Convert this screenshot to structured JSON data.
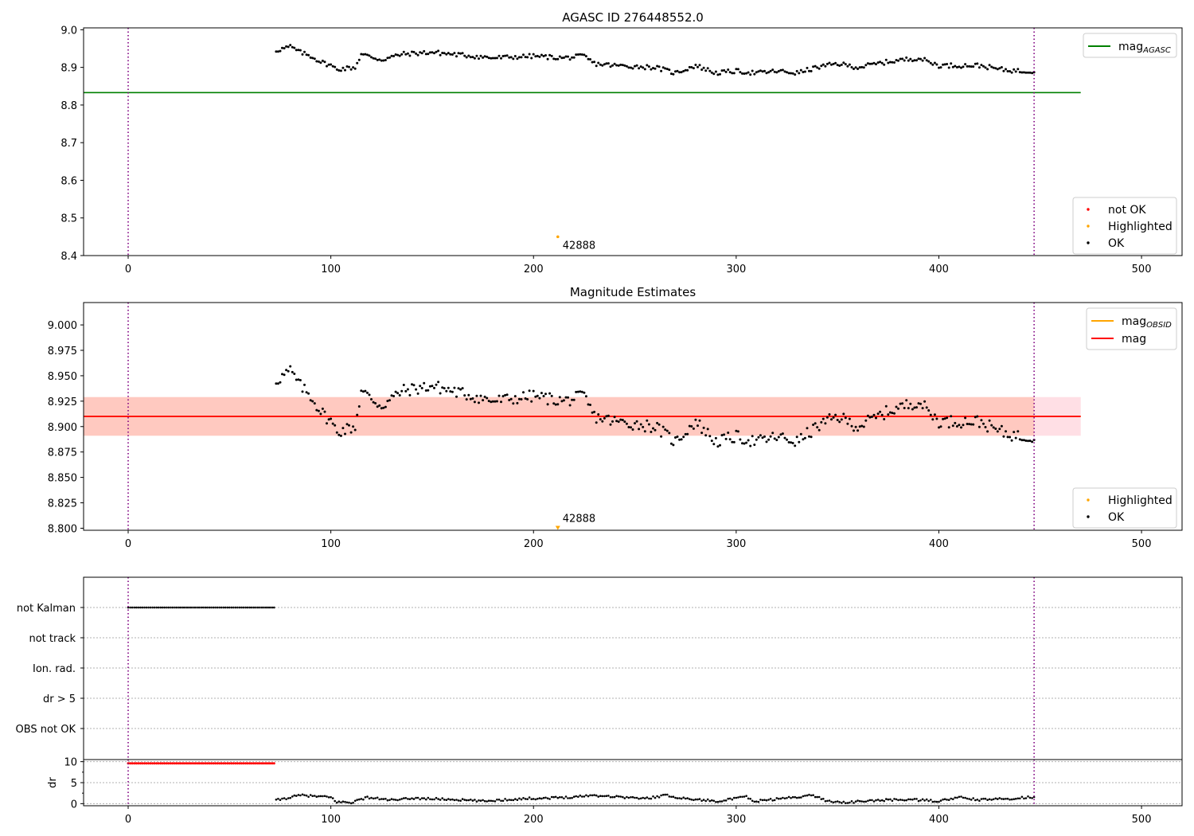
{
  "chart_data": [
    {
      "type": "scatter",
      "title": "AGASC ID 276448552.0",
      "xlim": [
        -22,
        520
      ],
      "ylim": [
        8.4,
        9.005
      ],
      "xticks": [
        0,
        100,
        200,
        300,
        400,
        500
      ],
      "yticks": [
        8.4,
        8.5,
        8.6,
        8.7,
        8.8,
        8.9,
        9.0
      ],
      "ytick_labels": [
        "8.4",
        "8.5",
        "8.6",
        "8.7",
        "8.8",
        "8.9",
        "9.0"
      ],
      "vlines": [
        0,
        447
      ],
      "hline": {
        "name": "mag_AGASC",
        "y": 8.833,
        "x_range": [
          -22,
          470
        ],
        "color": "#008000"
      },
      "legend_lines": [
        {
          "label": "mag",
          "sub": "AGASC",
          "color": "#008000"
        }
      ],
      "legend_points": [
        {
          "label": "not OK",
          "color": "#ff0000"
        },
        {
          "label": "Highlighted",
          "color": "#ffa500"
        },
        {
          "label": "OK",
          "color": "#000000"
        }
      ],
      "highlight": {
        "x": 212,
        "y": 8.45,
        "label": "42888"
      },
      "ok_series": {
        "x_start": 73,
        "x_end": 447,
        "anchors": [
          [
            73,
            8.945
          ],
          [
            80,
            8.955
          ],
          [
            85,
            8.94
          ],
          [
            90,
            8.93
          ],
          [
            95,
            8.915
          ],
          [
            100,
            8.905
          ],
          [
            103,
            8.895
          ],
          [
            112,
            8.9
          ],
          [
            115,
            8.935
          ],
          [
            125,
            8.92
          ],
          [
            135,
            8.935
          ],
          [
            150,
            8.94
          ],
          [
            170,
            8.93
          ],
          [
            180,
            8.925
          ],
          [
            200,
            8.93
          ],
          [
            215,
            8.925
          ],
          [
            225,
            8.93
          ],
          [
            230,
            8.91
          ],
          [
            240,
            8.905
          ],
          [
            260,
            8.9
          ],
          [
            270,
            8.885
          ],
          [
            280,
            8.905
          ],
          [
            290,
            8.885
          ],
          [
            300,
            8.89
          ],
          [
            310,
            8.885
          ],
          [
            320,
            8.89
          ],
          [
            330,
            8.885
          ],
          [
            340,
            8.9
          ],
          [
            350,
            8.91
          ],
          [
            360,
            8.9
          ],
          [
            375,
            8.915
          ],
          [
            390,
            8.925
          ],
          [
            400,
            8.905
          ],
          [
            410,
            8.905
          ],
          [
            420,
            8.905
          ],
          [
            430,
            8.895
          ],
          [
            440,
            8.89
          ],
          [
            447,
            8.89
          ]
        ],
        "noise": 0.006
      }
    },
    {
      "type": "scatter",
      "title": "Magnitude Estimates",
      "xlim": [
        -22,
        520
      ],
      "ylim": [
        8.798,
        9.022
      ],
      "xticks": [
        0,
        100,
        200,
        300,
        400,
        500
      ],
      "yticks": [
        8.8,
        8.825,
        8.85,
        8.875,
        8.9,
        8.925,
        8.95,
        8.975,
        9.0
      ],
      "ytick_labels": [
        "8.800",
        "8.825",
        "8.850",
        "8.875",
        "8.900",
        "8.925",
        "8.950",
        "8.975",
        "9.000"
      ],
      "vlines": [
        0,
        447
      ],
      "bands": [
        {
          "y0": 8.891,
          "y1": 8.929,
          "color": "#ffc0cb",
          "opacity": 0.5
        },
        {
          "y0": 8.891,
          "y1": 8.929,
          "x_range": [
            -22,
            447
          ],
          "color": "#ffa07a",
          "opacity": 0.35
        }
      ],
      "hlines": [
        {
          "name": "mag_OBSID",
          "y": 8.91,
          "color": "#ffa500"
        },
        {
          "name": "mag",
          "y": 8.91,
          "color": "#ff0000"
        }
      ],
      "legend_lines": [
        {
          "label": "mag",
          "sub": "OBSID",
          "color": "#ffa500"
        },
        {
          "label": "mag",
          "sub": "",
          "color": "#ff0000"
        }
      ],
      "legend_points": [
        {
          "label": "Highlighted",
          "color": "#ffa500"
        },
        {
          "label": "OK",
          "color": "#000000"
        }
      ],
      "highlight": {
        "x": 212,
        "y": 8.8,
        "label": "42888"
      },
      "ok_series": {
        "x_start": 73,
        "x_end": 447,
        "anchors": [
          [
            73,
            8.945
          ],
          [
            80,
            8.955
          ],
          [
            85,
            8.94
          ],
          [
            90,
            8.93
          ],
          [
            95,
            8.915
          ],
          [
            100,
            8.905
          ],
          [
            103,
            8.895
          ],
          [
            112,
            8.9
          ],
          [
            115,
            8.935
          ],
          [
            125,
            8.92
          ],
          [
            135,
            8.935
          ],
          [
            150,
            8.94
          ],
          [
            170,
            8.93
          ],
          [
            180,
            8.925
          ],
          [
            200,
            8.93
          ],
          [
            215,
            8.925
          ],
          [
            225,
            8.93
          ],
          [
            230,
            8.91
          ],
          [
            240,
            8.905
          ],
          [
            260,
            8.9
          ],
          [
            270,
            8.885
          ],
          [
            280,
            8.905
          ],
          [
            290,
            8.885
          ],
          [
            300,
            8.89
          ],
          [
            310,
            8.885
          ],
          [
            320,
            8.89
          ],
          [
            330,
            8.885
          ],
          [
            340,
            8.9
          ],
          [
            350,
            8.91
          ],
          [
            360,
            8.9
          ],
          [
            375,
            8.915
          ],
          [
            390,
            8.925
          ],
          [
            400,
            8.905
          ],
          [
            410,
            8.905
          ],
          [
            420,
            8.905
          ],
          [
            430,
            8.895
          ],
          [
            440,
            8.89
          ],
          [
            447,
            8.89
          ]
        ],
        "noise": 0.006
      }
    },
    {
      "type": "scatter",
      "title": "",
      "xlim": [
        -22,
        520
      ],
      "categories": [
        "not Kalman",
        "not track",
        "Ion. rad.",
        "dr > 5",
        "OBS not OK"
      ],
      "vlines": [
        0,
        447
      ],
      "flags": [
        {
          "category": "not Kalman",
          "x_range": [
            0,
            72
          ]
        }
      ]
    },
    {
      "type": "scatter",
      "title": "",
      "ylabel": "dr",
      "xlim": [
        -22,
        520
      ],
      "ylim": [
        -0.5,
        10.5
      ],
      "yticks": [
        0,
        5,
        10
      ],
      "ytick_labels": [
        "0",
        "5",
        "10"
      ],
      "xticks": [
        0,
        100,
        200,
        300,
        400,
        500
      ],
      "vlines": [
        0,
        447
      ],
      "red_points": {
        "x_range": [
          0,
          72
        ],
        "y": 9.6
      },
      "dr_series": {
        "x_start": 73,
        "x_end": 447,
        "anchors": [
          [
            73,
            0.8
          ],
          [
            85,
            2.0
          ],
          [
            100,
            1.5
          ],
          [
            103,
            0.4
          ],
          [
            110,
            0.3
          ],
          [
            118,
            1.5
          ],
          [
            125,
            1.1
          ],
          [
            132,
            0.8
          ],
          [
            140,
            1.3
          ],
          [
            160,
            1.0
          ],
          [
            175,
            0.6
          ],
          [
            195,
            1.2
          ],
          [
            205,
            1.3
          ],
          [
            220,
            1.6
          ],
          [
            228,
            2.0
          ],
          [
            240,
            1.7
          ],
          [
            255,
            1.2
          ],
          [
            265,
            2.0
          ],
          [
            275,
            1.2
          ],
          [
            290,
            0.6
          ],
          [
            300,
            1.2
          ],
          [
            305,
            1.8
          ],
          [
            308,
            0.5
          ],
          [
            318,
            1.0
          ],
          [
            338,
            2.0
          ],
          [
            345,
            0.6
          ],
          [
            355,
            0.3
          ],
          [
            370,
            0.8
          ],
          [
            385,
            1.0
          ],
          [
            400,
            0.6
          ],
          [
            410,
            1.5
          ],
          [
            420,
            0.9
          ],
          [
            435,
            1.2
          ],
          [
            447,
            1.6
          ]
        ],
        "noise": 0.25
      }
    }
  ]
}
